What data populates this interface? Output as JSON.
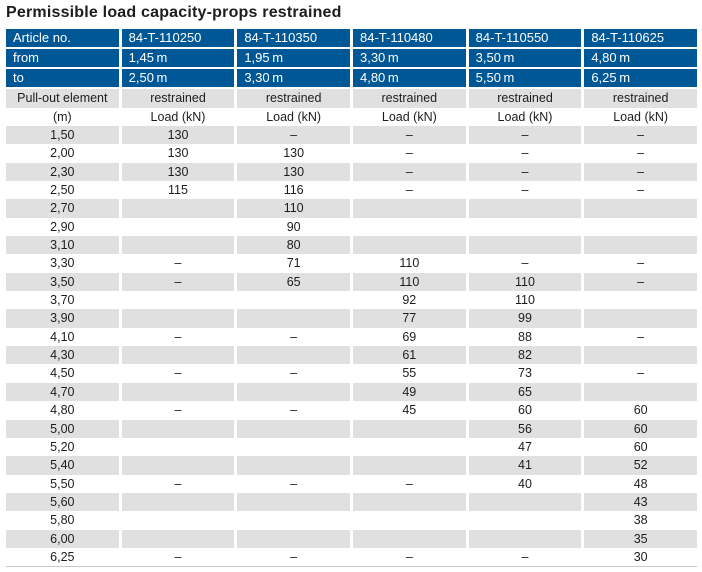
{
  "title": "Permissible load capacity-props restrained",
  "colors": {
    "header_blue": "#005796",
    "stripe_gray": "#e0e0e0",
    "header_text": "#ffffff",
    "body_text": "#1d1d1b"
  },
  "table": {
    "header": {
      "article_label": "Article no.",
      "from_label": "from",
      "to_label": "to",
      "columns": [
        {
          "article": "84-T-110250",
          "from": "1,45 m",
          "to": "2,50 m"
        },
        {
          "article": "84-T-110350",
          "from": "1,95 m",
          "to": "3,30 m"
        },
        {
          "article": "84-T-110480",
          "from": "3,30 m",
          "to": "4,80 m"
        },
        {
          "article": "84-T-110550",
          "from": "3,50 m",
          "to": "5,50 m"
        },
        {
          "article": "84-T-110625",
          "from": "4,80 m",
          "to": "6,25 m"
        }
      ]
    },
    "subheader": {
      "row_label_top": "Pull-out element",
      "row_label_bottom": "(m)",
      "restrained": "restrained",
      "load_kn": "Load (kN)"
    },
    "rows": [
      {
        "m": "1,50",
        "values": [
          "130",
          "–",
          "–",
          "–",
          "–"
        ]
      },
      {
        "m": "2,00",
        "values": [
          "130",
          "130",
          "–",
          "–",
          "–"
        ]
      },
      {
        "m": "2,30",
        "values": [
          "130",
          "130",
          "–",
          "–",
          "–"
        ]
      },
      {
        "m": "2,50",
        "values": [
          "115",
          "116",
          "–",
          "–",
          "–"
        ]
      },
      {
        "m": "2,70",
        "values": [
          "",
          "110",
          "",
          "",
          ""
        ]
      },
      {
        "m": "2,90",
        "values": [
          "",
          "90",
          "",
          "",
          ""
        ]
      },
      {
        "m": "3,10",
        "values": [
          "",
          "80",
          "",
          "",
          ""
        ]
      },
      {
        "m": "3,30",
        "values": [
          "–",
          "71",
          "110",
          "–",
          "–"
        ]
      },
      {
        "m": "3,50",
        "values": [
          "–",
          "65",
          "110",
          "110",
          "–"
        ]
      },
      {
        "m": "3,70",
        "values": [
          "",
          "",
          "92",
          "110",
          ""
        ]
      },
      {
        "m": "3,90",
        "values": [
          "",
          "",
          "77",
          "99",
          ""
        ]
      },
      {
        "m": "4,10",
        "values": [
          "–",
          "–",
          "69",
          "88",
          "–"
        ]
      },
      {
        "m": "4,30",
        "values": [
          "",
          "",
          "61",
          "82",
          ""
        ]
      },
      {
        "m": "4,50",
        "values": [
          "–",
          "–",
          "55",
          "73",
          "–"
        ]
      },
      {
        "m": "4,70",
        "values": [
          "",
          "",
          "49",
          "65",
          ""
        ]
      },
      {
        "m": "4,80",
        "values": [
          "–",
          "–",
          "45",
          "60",
          "60"
        ]
      },
      {
        "m": "5,00",
        "values": [
          "",
          "",
          "",
          "56",
          "60"
        ]
      },
      {
        "m": "5,20",
        "values": [
          "",
          "",
          "",
          "47",
          "60"
        ]
      },
      {
        "m": "5,40",
        "values": [
          "",
          "",
          "",
          "41",
          "52"
        ]
      },
      {
        "m": "5,50",
        "values": [
          "–",
          "–",
          "–",
          "40",
          "48"
        ]
      },
      {
        "m": "5,60",
        "values": [
          "",
          "",
          "",
          "",
          "43"
        ]
      },
      {
        "m": "5,80",
        "values": [
          "",
          "",
          "",
          "",
          "38"
        ]
      },
      {
        "m": "6,00",
        "values": [
          "",
          "",
          "",
          "",
          "35"
        ]
      },
      {
        "m": "6,25",
        "values": [
          "–",
          "–",
          "–",
          "–",
          "30"
        ]
      }
    ]
  }
}
